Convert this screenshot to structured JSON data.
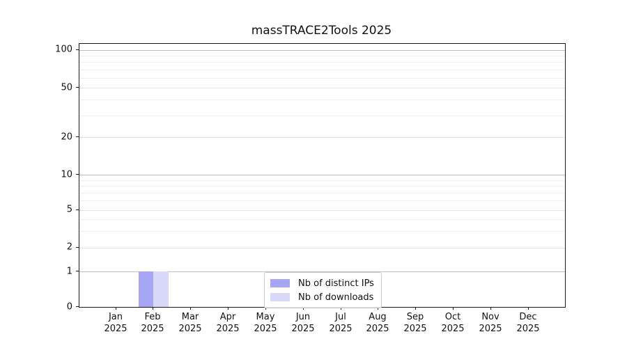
{
  "chart_data": {
    "type": "bar",
    "title": "massTRACE2Tools 2025",
    "categories": [
      "Jan",
      "Feb",
      "Mar",
      "Apr",
      "May",
      "Jun",
      "Jul",
      "Aug",
      "Sep",
      "Oct",
      "Nov",
      "Dec"
    ],
    "x_tick_year": "2025",
    "series": [
      {
        "name": "Nb of distinct IPs",
        "color": "#a6a6f4",
        "values": [
          0,
          1,
          0,
          0,
          0,
          0,
          0,
          0,
          0,
          0,
          0,
          0
        ]
      },
      {
        "name": "Nb of downloads",
        "color": "#d8d8f8",
        "values": [
          0,
          1,
          0,
          0,
          0,
          0,
          0,
          0,
          0,
          0,
          0,
          0
        ]
      }
    ],
    "xlabel": "",
    "ylabel": "",
    "y_axis": {
      "scale": "log-like with 0 baseline",
      "ticks": [
        0,
        1,
        2,
        5,
        10,
        20,
        50,
        100
      ],
      "major_gridline_values": [
        1,
        10,
        100
      ],
      "labeled_minor_gridline_values": [
        2,
        5,
        20,
        50
      ],
      "minor_gridline_values": [
        3,
        4,
        6,
        7,
        8,
        9,
        30,
        40,
        60,
        70,
        80,
        90
      ],
      "ylim": [
        0,
        105
      ]
    },
    "grid": "horizontal only",
    "legend": {
      "position": "lower center"
    }
  },
  "colors": {
    "background": "#ffffff",
    "spine": "#1a1a1a",
    "text": "#111111",
    "major_grid": "#bdbdbd",
    "labeled_minor_grid": "#e3e3e3",
    "minor_grid": "#efefef",
    "legend_border": "#cccccc"
  }
}
